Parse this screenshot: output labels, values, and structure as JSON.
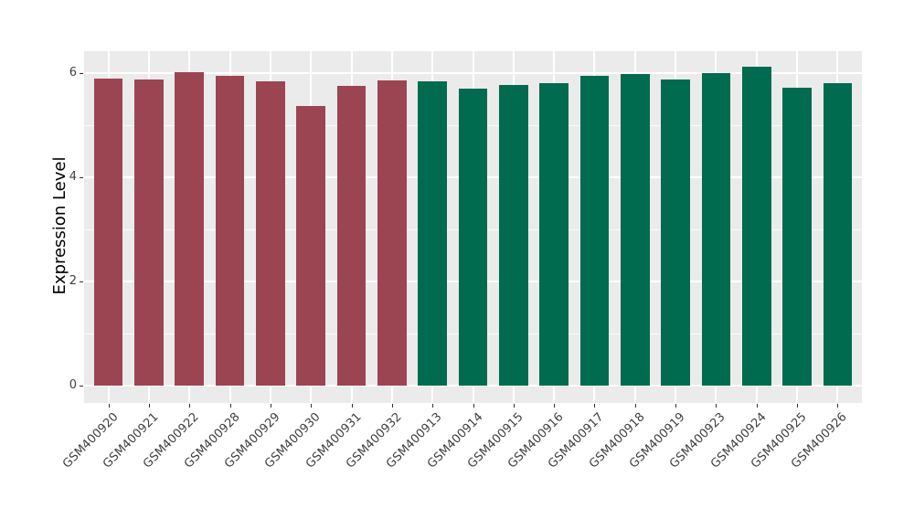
{
  "figure": {
    "background": "#FFFFFF"
  },
  "chart_data": {
    "type": "bar",
    "title": "",
    "xlabel": "",
    "ylabel": "Expression Level",
    "categories": [
      "GSM400920",
      "GSM400921",
      "GSM400922",
      "GSM400928",
      "GSM400929",
      "GSM400930",
      "GSM400931",
      "GSM400932",
      "GSM400913",
      "GSM400914",
      "GSM400915",
      "GSM400916",
      "GSM400917",
      "GSM400918",
      "GSM400919",
      "GSM400923",
      "GSM400924",
      "GSM400925",
      "GSM400926"
    ],
    "values": [
      5.9,
      5.87,
      6.02,
      5.95,
      5.85,
      5.36,
      5.75,
      5.86,
      5.85,
      5.7,
      5.78,
      5.81,
      5.94,
      5.98,
      5.87,
      6.0,
      6.13,
      5.72,
      5.8
    ],
    "bar_colors": [
      "#9C4552",
      "#9C4552",
      "#9C4552",
      "#9C4552",
      "#9C4552",
      "#9C4552",
      "#9C4552",
      "#9C4552",
      "#016B4F",
      "#016B4F",
      "#016B4F",
      "#016B4F",
      "#016B4F",
      "#016B4F",
      "#016B4F",
      "#016B4F",
      "#016B4F",
      "#016B4F",
      "#016B4F"
    ],
    "group_colors": {
      "left_group": "#9C4552",
      "right_group": "#016B4F"
    },
    "y_ticks": [
      0,
      2,
      4,
      6
    ],
    "y_minor_ticks": [
      1,
      3,
      5
    ],
    "ylim": [
      0,
      6.43
    ],
    "grid": true,
    "legend_position": "none",
    "x_tick_rotation": 45,
    "panel_background": "#EBEBEB",
    "gridline_color": "#FFFFFF",
    "tick_color": "#333333",
    "axis_text_color": "#404040",
    "axis_title_color": "#000000"
  }
}
